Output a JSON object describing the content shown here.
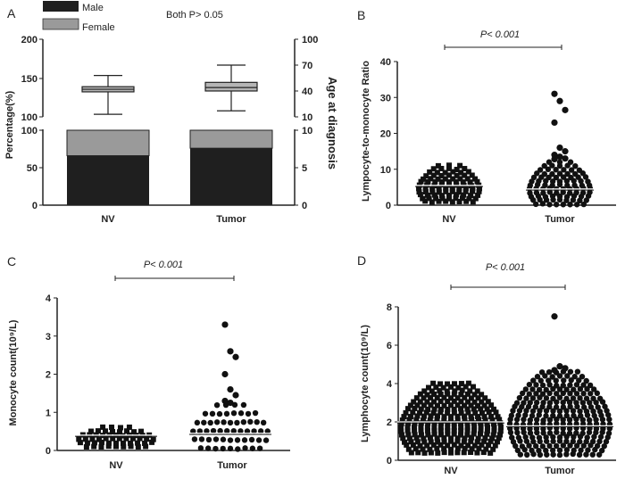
{
  "chart_data": [
    {
      "panel": "A",
      "type": "bar",
      "title": "",
      "annotation": "Both P> 0.05",
      "categories": [
        "NV",
        "Tumor"
      ],
      "legend": [
        "Male",
        "Female"
      ],
      "ylabel_left": "Percentage(%)",
      "ylabel_right": "Age at diagnosis",
      "left_ticks_lower": [
        "0",
        "50",
        "100"
      ],
      "left_ticks_upper": [
        "100",
        "150",
        "200"
      ],
      "right_ticks_lower": [
        "0",
        "5",
        "10"
      ],
      "right_ticks_upper": [
        "10",
        "40",
        "70",
        "100"
      ],
      "series": [
        {
          "name": "Male",
          "values": [
            66,
            76
          ]
        },
        {
          "name": "Female",
          "values": [
            34,
            24
          ]
        }
      ],
      "boxplot_age": [
        {
          "category": "NV",
          "min": 13,
          "q1": 39,
          "median": 42,
          "q3": 45,
          "max": 58
        },
        {
          "category": "Tumor",
          "min": 17,
          "q1": 40,
          "median": 44,
          "q3": 50,
          "max": 70
        }
      ],
      "colors": {
        "male": "#1f1f1f",
        "female": "#9a9a9a",
        "box": "#b5b5b5"
      }
    },
    {
      "panel": "B",
      "type": "scatter",
      "ylabel": "Lympocyte-to-monocyte Ratio",
      "categories": [
        "NV",
        "Tumor"
      ],
      "ylim": [
        0,
        40
      ],
      "yticks": [
        "0",
        "10",
        "20",
        "30",
        "40"
      ],
      "p_text": "P< 0.001",
      "series": [
        {
          "name": "NV",
          "min": 1,
          "max": 11,
          "median": 5.5,
          "shape": "square",
          "outliers": []
        },
        {
          "name": "Tumor",
          "min": 0.3,
          "max": 12,
          "median": 4.5,
          "shape": "circle",
          "outliers": [
            31,
            29,
            26.5,
            23,
            16,
            15,
            14,
            13.5,
            13,
            12.8
          ]
        }
      ]
    },
    {
      "panel": "C",
      "type": "scatter",
      "ylabel": "Monocyte count(10⁹/L)",
      "categories": [
        "NV",
        "Tumor"
      ],
      "ylim": [
        0,
        4
      ],
      "yticks": [
        "0",
        "1",
        "2",
        "3",
        "4"
      ],
      "p_text": "P< 0.001",
      "series": [
        {
          "name": "NV",
          "min": 0.1,
          "max": 0.6,
          "median": 0.4,
          "shape": "square",
          "outliers": []
        },
        {
          "name": "Tumor",
          "min": 0.05,
          "max": 1.2,
          "median": 0.45,
          "shape": "circle",
          "outliers": [
            3.3,
            2.6,
            2.45,
            2.0,
            1.6,
            1.45,
            1.3,
            1.25
          ]
        }
      ]
    },
    {
      "panel": "D",
      "type": "scatter",
      "ylabel": "Lymphocyte count(10⁹/L)",
      "categories": [
        "NV",
        "Tumor"
      ],
      "ylim": [
        0,
        8
      ],
      "yticks": [
        "0",
        "2",
        "4",
        "6",
        "8"
      ],
      "p_text": "P< 0.001",
      "series": [
        {
          "name": "NV",
          "min": 0.4,
          "max": 4.0,
          "median": 2.0,
          "shape": "square",
          "outliers": []
        },
        {
          "name": "Tumor",
          "min": 0.3,
          "max": 4.6,
          "median": 1.8,
          "shape": "circle",
          "outliers": [
            7.5,
            4.9,
            4.8,
            4.7
          ]
        }
      ]
    }
  ]
}
